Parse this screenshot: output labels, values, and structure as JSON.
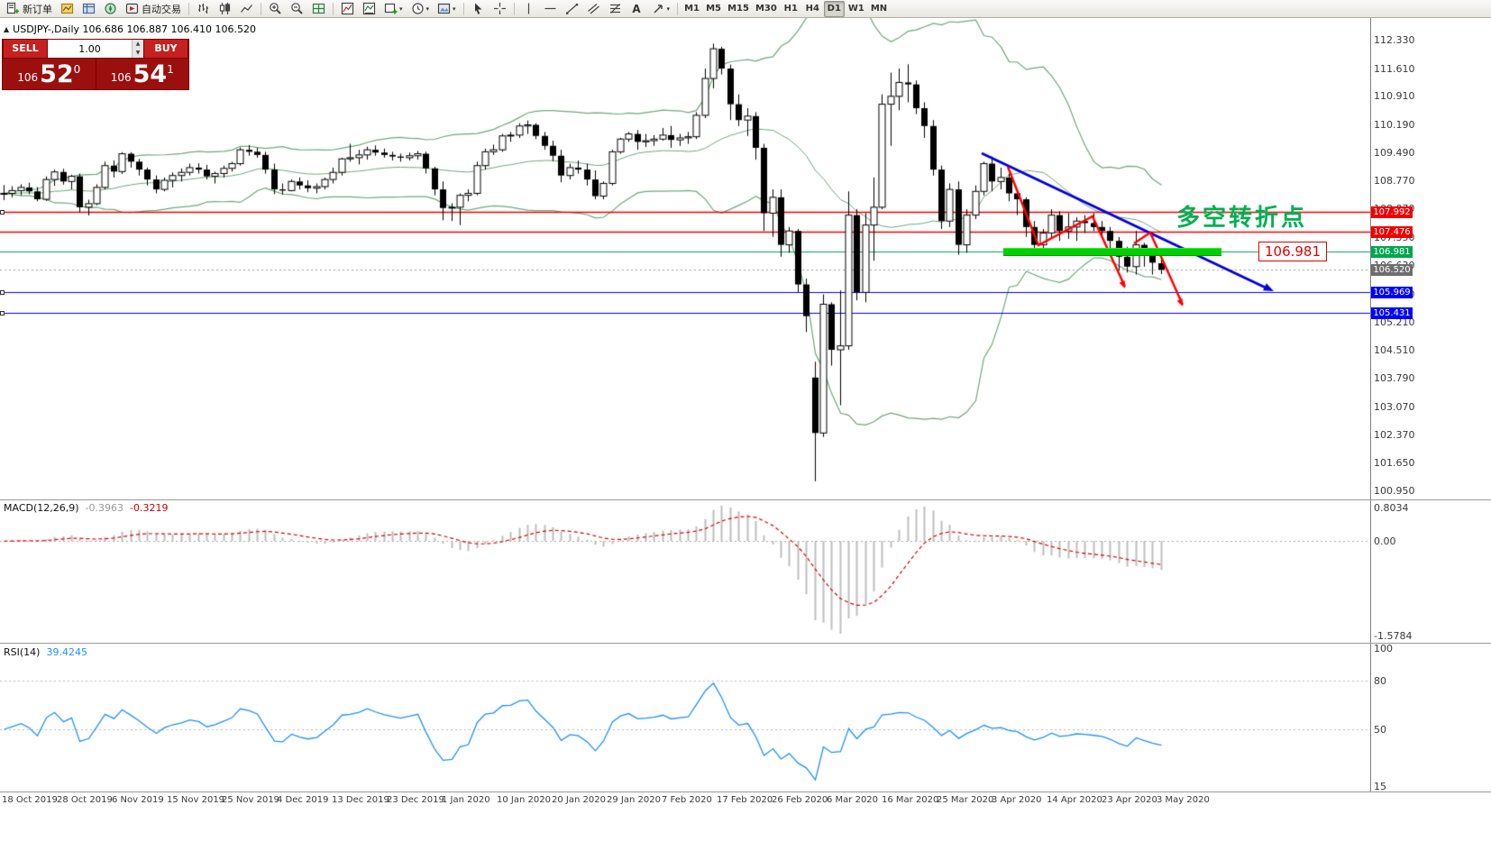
{
  "colors": {
    "up": "#ffffff",
    "down": "#000000",
    "outline": "#000000",
    "band": "#6fa87a",
    "macd_hist": "#bdbdbd",
    "macd_signal": "#e00000",
    "rsi_line": "#1e90ff",
    "trendline": "#0000e0",
    "zigzag": "#ff0000",
    "lime_bar": "#00cf00",
    "turn_text_green": "#00b050",
    "tag_red": "#f00000",
    "tag_green": "#00a651",
    "tag_gray": "#6e6e6e",
    "tag_blue": "#0000ff"
  },
  "toolbar": {
    "items": [
      {
        "name": "new-order",
        "label": "新订单",
        "icon": "new-order-icon"
      },
      {
        "name": "charts-profile",
        "icon": "profile-icon"
      },
      {
        "name": "market-watch",
        "icon": "market-watch-icon"
      },
      {
        "name": "navigator",
        "icon": "navigator-icon"
      },
      {
        "name": "auto-trading",
        "label": "自动交易",
        "icon": "auto-trading-icon"
      },
      {
        "sep": true
      },
      {
        "name": "bar-chart",
        "icon": "bar-chart-icon"
      },
      {
        "name": "candlestick-chart",
        "icon": "candlestick-icon"
      },
      {
        "name": "line-chart",
        "icon": "line-chart-icon"
      },
      {
        "sep": true
      },
      {
        "name": "zoom-in",
        "icon": "zoom-in-icon"
      },
      {
        "name": "zoom-out",
        "icon": "zoom-out-icon"
      },
      {
        "name": "tile-windows",
        "icon": "grid-icon"
      },
      {
        "sep": true
      },
      {
        "name": "indicators",
        "icon": "indicators-icon"
      },
      {
        "name": "indicator-list",
        "icon": "indicator-list-icon"
      },
      {
        "name": "add-chart",
        "icon": "add-chart-icon",
        "caret": true
      },
      {
        "name": "periods",
        "icon": "clock-icon",
        "caret": true
      },
      {
        "name": "templates",
        "icon": "template-icon",
        "caret": true
      },
      {
        "sep": true
      },
      {
        "name": "cursor",
        "icon": "cursor-icon"
      },
      {
        "name": "crosshair",
        "icon": "crosshair-icon"
      },
      {
        "sep": true
      },
      {
        "name": "vertical-line",
        "icon": "vline-icon"
      },
      {
        "name": "horizontal-line",
        "icon": "hline-icon"
      },
      {
        "name": "trendline",
        "icon": "trendline-icon"
      },
      {
        "name": "equidistant-channel",
        "icon": "channel-icon"
      },
      {
        "name": "fibonacci",
        "icon": "fibo-icon"
      },
      {
        "name": "text-label",
        "icon": "text-icon"
      },
      {
        "name": "arrows",
        "icon": "arrows-icon",
        "caret": true
      },
      {
        "sep": true
      }
    ],
    "timeframes": [
      "M1",
      "M5",
      "M15",
      "M30",
      "H1",
      "H4",
      "D1",
      "W1",
      "MN"
    ],
    "active_timeframe": "D1"
  },
  "chart": {
    "collapse_arrow": "▲",
    "header": "USDJPY-,Daily  106.686 106.887 106.410 106.520"
  },
  "trade_panel": {
    "sell_label": "SELL",
    "buy_label": "BUY",
    "volume": "1.00",
    "bid_small": "106",
    "bid_big": "52",
    "bid_sup": "0",
    "ask_small": "106",
    "ask_big": "54",
    "ask_sup": "1"
  },
  "hlines": [
    {
      "price": "107.992",
      "color": "#f00000",
      "width": 1.5,
      "style": "solid",
      "handle": true
    },
    {
      "price": "107.476",
      "color": "#f00000",
      "width": 1.5,
      "style": "solid"
    },
    {
      "price": "106.981",
      "color": "#00a651",
      "width": 1.2,
      "style": "solid"
    },
    {
      "price": "106.520",
      "color": "#9a9a9a",
      "width": 1,
      "style": "dot",
      "tag": "#6e6e6e"
    },
    {
      "price": "105.969",
      "color": "#0000ff",
      "width": 1.2,
      "style": "solid",
      "handle": true
    },
    {
      "price": "105.431",
      "color": "#0000ff",
      "width": 1.2,
      "style": "solid",
      "handle": true
    }
  ],
  "annotations": {
    "turning_point_text": "多空转折点",
    "price_label": "106.981"
  },
  "macd": {
    "title": "MACD(12,26,9)",
    "value_main": "-0.3963",
    "value_signal": "-0.3219"
  },
  "rsi": {
    "title": "RSI(14)",
    "value": "39.4245"
  },
  "axis": {
    "price_labels": [
      "112.330",
      "111.610",
      "110.910",
      "110.190",
      "109.490",
      "108.770",
      "108.070",
      "107.350",
      "106.630",
      "105.910",
      "105.210",
      "104.510",
      "103.790",
      "103.070",
      "102.370",
      "101.650",
      "100.950"
    ],
    "macd_labels": [
      "0.8034",
      "0.00",
      "-1.5784"
    ],
    "rsi_labels": [
      "100",
      "80",
      "50",
      "15"
    ]
  },
  "dates": [
    "18 Oct 2019",
    "28 Oct 2019",
    "6 Nov 2019",
    "15 Nov 2019",
    "25 Nov 2019",
    "4 Dec 2019",
    "13 Dec 2019",
    "23 Dec 2019",
    "1 Jan 2020",
    "10 Jan 2020",
    "20 Jan 2020",
    "29 Jan 2020",
    "7 Feb 2020",
    "17 Feb 2020",
    "26 Feb 2020",
    "6 Mar 2020",
    "16 Mar 2020",
    "25 Mar 2020",
    "3 Apr 2020",
    "14 Apr 2020",
    "23 Apr 2020",
    "3 May 2020"
  ],
  "chart_data": {
    "type": "candlestick",
    "symbol": "USDJPY-",
    "timeframe": "Daily",
    "open": 106.686,
    "high": 106.887,
    "low": 106.41,
    "close": 106.52,
    "price_range": [
      100.95,
      112.33
    ],
    "indicators": {
      "bollinger": {
        "period": 20,
        "deviation": 2
      },
      "macd": {
        "fast": 12,
        "slow": 26,
        "signal": 9,
        "last_main": -0.3963,
        "last_signal": -0.3219,
        "scale": [
          -1.5784,
          0.8034
        ]
      },
      "rsi": {
        "period": 14,
        "last": 39.4245,
        "scale": [
          15,
          100
        ],
        "levels": [
          50,
          80
        ]
      }
    },
    "horizontal_levels": [
      107.992,
      107.476,
      106.981,
      106.52,
      105.969,
      105.431
    ],
    "ohlc": [
      [
        108.45,
        108.66,
        108.28,
        108.45
      ],
      [
        108.45,
        108.63,
        108.35,
        108.52
      ],
      [
        108.52,
        108.68,
        108.4,
        108.6
      ],
      [
        108.6,
        108.72,
        108.43,
        108.5
      ],
      [
        108.5,
        108.61,
        108.25,
        108.3
      ],
      [
        108.3,
        108.88,
        108.26,
        108.8
      ],
      [
        108.8,
        109.05,
        108.64,
        108.99
      ],
      [
        108.99,
        109.07,
        108.67,
        108.75
      ],
      [
        108.75,
        108.92,
        108.55,
        108.88
      ],
      [
        108.88,
        108.95,
        107.97,
        108.1
      ],
      [
        108.1,
        108.29,
        107.89,
        108.19
      ],
      [
        108.19,
        108.68,
        108.15,
        108.6
      ],
      [
        108.6,
        109.25,
        108.55,
        109.15
      ],
      [
        109.15,
        109.28,
        108.85,
        109.0
      ],
      [
        109.0,
        109.49,
        108.94,
        109.45
      ],
      [
        109.45,
        109.49,
        109.1,
        109.25
      ],
      [
        109.25,
        109.32,
        108.9,
        109.05
      ],
      [
        109.05,
        109.1,
        108.65,
        108.8
      ],
      [
        108.8,
        108.9,
        108.45,
        108.55
      ],
      [
        108.55,
        108.85,
        108.5,
        108.78
      ],
      [
        108.78,
        108.98,
        108.6,
        108.9
      ],
      [
        108.9,
        109.08,
        108.75,
        108.98
      ],
      [
        108.98,
        109.2,
        108.9,
        109.1
      ],
      [
        109.1,
        109.21,
        108.95,
        109.05
      ],
      [
        109.05,
        109.17,
        108.8,
        108.88
      ],
      [
        108.88,
        109.0,
        108.7,
        108.95
      ],
      [
        108.95,
        109.15,
        108.85,
        109.08
      ],
      [
        109.08,
        109.25,
        109.0,
        109.2
      ],
      [
        109.2,
        109.61,
        109.15,
        109.55
      ],
      [
        109.55,
        109.67,
        109.4,
        109.5
      ],
      [
        109.5,
        109.6,
        109.35,
        109.42
      ],
      [
        109.42,
        109.5,
        108.95,
        109.05
      ],
      [
        109.05,
        109.2,
        108.43,
        108.55
      ],
      [
        108.55,
        108.7,
        108.42,
        108.52
      ],
      [
        108.52,
        108.8,
        108.5,
        108.75
      ],
      [
        108.75,
        108.85,
        108.55,
        108.65
      ],
      [
        108.65,
        108.78,
        108.48,
        108.58
      ],
      [
        108.58,
        108.7,
        108.45,
        108.62
      ],
      [
        108.62,
        108.85,
        108.55,
        108.8
      ],
      [
        108.8,
        109.1,
        108.7,
        108.98
      ],
      [
        108.98,
        109.35,
        108.9,
        109.32
      ],
      [
        109.32,
        109.7,
        109.25,
        109.35
      ],
      [
        109.35,
        109.55,
        109.18,
        109.42
      ],
      [
        109.42,
        109.63,
        109.3,
        109.55
      ],
      [
        109.55,
        109.66,
        109.4,
        109.48
      ],
      [
        109.48,
        109.58,
        109.35,
        109.42
      ],
      [
        109.42,
        109.5,
        109.28,
        109.38
      ],
      [
        109.38,
        109.45,
        109.25,
        109.35
      ],
      [
        109.35,
        109.48,
        109.28,
        109.4
      ],
      [
        109.4,
        109.52,
        109.3,
        109.45
      ],
      [
        109.45,
        109.5,
        108.95,
        109.08
      ],
      [
        109.08,
        109.12,
        108.4,
        108.55
      ],
      [
        108.55,
        108.75,
        107.77,
        108.08
      ],
      [
        108.08,
        108.2,
        107.75,
        108.1
      ],
      [
        108.1,
        108.45,
        107.65,
        108.4
      ],
      [
        108.4,
        108.55,
        108.25,
        108.45
      ],
      [
        108.45,
        109.25,
        108.4,
        109.15
      ],
      [
        109.15,
        109.58,
        109.05,
        109.5
      ],
      [
        109.5,
        109.68,
        109.42,
        109.55
      ],
      [
        109.55,
        109.95,
        109.5,
        109.9
      ],
      [
        109.9,
        110.0,
        109.75,
        109.92
      ],
      [
        109.92,
        110.22,
        109.85,
        110.15
      ],
      [
        110.15,
        110.29,
        109.95,
        110.18
      ],
      [
        110.18,
        110.22,
        109.82,
        109.9
      ],
      [
        109.9,
        110.0,
        109.55,
        109.65
      ],
      [
        109.65,
        109.78,
        109.26,
        109.4
      ],
      [
        109.4,
        109.55,
        108.73,
        108.9
      ],
      [
        108.9,
        109.2,
        108.8,
        109.1
      ],
      [
        109.1,
        109.28,
        108.95,
        109.05
      ],
      [
        109.05,
        109.2,
        108.65,
        108.8
      ],
      [
        108.8,
        109.03,
        108.3,
        108.38
      ],
      [
        108.38,
        108.75,
        108.3,
        108.7
      ],
      [
        108.7,
        109.55,
        108.65,
        109.5
      ],
      [
        109.5,
        109.85,
        109.45,
        109.82
      ],
      [
        109.82,
        110.0,
        109.75,
        109.95
      ],
      [
        109.95,
        110.05,
        109.55,
        109.75
      ],
      [
        109.75,
        109.95,
        109.62,
        109.78
      ],
      [
        109.78,
        109.92,
        109.65,
        109.82
      ],
      [
        109.82,
        110.1,
        109.78,
        109.92
      ],
      [
        109.92,
        110.15,
        109.6,
        109.8
      ],
      [
        109.8,
        109.95,
        109.65,
        109.85
      ],
      [
        109.85,
        110.0,
        109.7,
        109.88
      ],
      [
        109.88,
        110.5,
        109.82,
        110.42
      ],
      [
        110.42,
        111.6,
        110.35,
        111.35
      ],
      [
        111.35,
        112.23,
        111.1,
        112.1
      ],
      [
        112.1,
        112.15,
        111.45,
        111.6
      ],
      [
        111.6,
        111.7,
        110.3,
        110.7
      ],
      [
        110.7,
        110.95,
        110.15,
        110.3
      ],
      [
        110.3,
        110.6,
        109.9,
        110.4
      ],
      [
        110.4,
        110.5,
        109.3,
        109.6
      ],
      [
        109.6,
        109.7,
        107.5,
        107.95
      ],
      [
        107.95,
        108.55,
        107.35,
        108.35
      ],
      [
        108.35,
        108.55,
        106.85,
        107.15
      ],
      [
        107.15,
        107.6,
        106.95,
        107.5
      ],
      [
        107.5,
        107.55,
        105.95,
        106.15
      ],
      [
        106.15,
        106.3,
        104.95,
        105.35
      ],
      [
        103.8,
        104.2,
        101.18,
        102.4
      ],
      [
        102.4,
        105.9,
        102.3,
        105.65
      ],
      [
        105.65,
        105.7,
        104.1,
        104.5
      ],
      [
        104.5,
        106.0,
        103.1,
        104.6
      ],
      [
        104.6,
        108.5,
        104.5,
        107.9
      ],
      [
        107.9,
        108.05,
        105.75,
        105.95
      ],
      [
        105.95,
        107.95,
        105.7,
        107.65
      ],
      [
        107.65,
        108.85,
        106.75,
        108.1
      ],
      [
        108.1,
        110.95,
        108.05,
        110.7
      ],
      [
        110.7,
        111.5,
        109.65,
        110.9
      ],
      [
        110.9,
        111.6,
        110.55,
        111.25
      ],
      [
        111.25,
        111.71,
        110.75,
        111.2
      ],
      [
        111.2,
        111.3,
        110.45,
        110.6
      ],
      [
        110.6,
        110.75,
        109.85,
        110.15
      ],
      [
        110.15,
        110.3,
        108.9,
        109.05
      ],
      [
        109.05,
        109.15,
        107.55,
        107.75
      ],
      [
        107.75,
        108.7,
        107.6,
        108.55
      ],
      [
        108.55,
        108.75,
        106.9,
        107.15
      ],
      [
        107.15,
        108.05,
        106.95,
        107.9
      ],
      [
        107.9,
        108.65,
        107.8,
        108.5
      ],
      [
        108.5,
        109.25,
        108.4,
        109.2
      ],
      [
        109.2,
        109.38,
        108.5,
        108.75
      ],
      [
        108.75,
        109.1,
        108.55,
        108.85
      ],
      [
        108.85,
        108.95,
        108.25,
        108.45
      ],
      [
        108.45,
        108.55,
        107.9,
        108.3
      ],
      [
        108.3,
        108.35,
        107.35,
        107.6
      ],
      [
        107.6,
        107.75,
        106.9,
        107.15
      ],
      [
        107.15,
        107.55,
        106.9,
        107.45
      ],
      [
        107.45,
        108.05,
        107.3,
        107.9
      ],
      [
        107.9,
        108.0,
        107.25,
        107.5
      ],
      [
        107.5,
        107.95,
        107.3,
        107.6
      ],
      [
        107.6,
        107.85,
        107.25,
        107.75
      ],
      [
        107.75,
        107.9,
        107.45,
        107.7
      ],
      [
        107.7,
        107.95,
        107.5,
        107.6
      ],
      [
        107.6,
        107.75,
        107.3,
        107.5
      ],
      [
        107.5,
        107.6,
        106.99,
        107.25
      ],
      [
        107.25,
        107.35,
        106.5,
        106.85
      ],
      [
        106.85,
        107.1,
        106.45,
        106.6
      ],
      [
        106.6,
        107.5,
        106.4,
        107.15
      ],
      [
        107.15,
        107.2,
        106.6,
        106.9
      ],
      [
        106.9,
        107.05,
        106.4,
        106.7
      ],
      [
        106.686,
        106.887,
        106.41,
        106.52
      ]
    ]
  }
}
